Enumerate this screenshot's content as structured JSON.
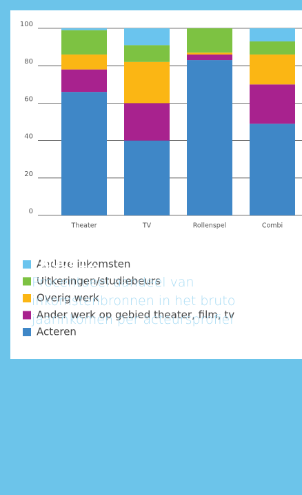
{
  "chart_data": {
    "type": "stacked_bar",
    "title": "Figuur 12.",
    "subtitle": "Procentueel aandeel van inkomstenbronnen in het bruto jaarinkomen per acteursprofiel",
    "categories": [
      "Theater",
      "TV",
      "Rollenspel",
      "Combi"
    ],
    "series": [
      {
        "name": "Andere inkomsten",
        "color": "#6ac4ee",
        "values": [
          1,
          9,
          0,
          7
        ]
      },
      {
        "name": "Uitkeringen/studiebeurs",
        "color": "#7dc242",
        "values": [
          13,
          9,
          13,
          7
        ]
      },
      {
        "name": "Overig werk",
        "color": "#fbb614",
        "values": [
          8,
          22,
          1,
          16
        ]
      },
      {
        "name": "Ander werk op gebied theater, film, tv",
        "color": "#a8228e",
        "values": [
          12,
          20,
          3,
          21
        ]
      },
      {
        "name": "Acteren",
        "color": "#3f87c7",
        "values": [
          66,
          40,
          83,
          49
        ]
      }
    ],
    "ylim": [
      0,
      100
    ],
    "yticks": [
      0,
      20,
      40,
      60,
      80,
      100
    ],
    "grid": true
  }
}
